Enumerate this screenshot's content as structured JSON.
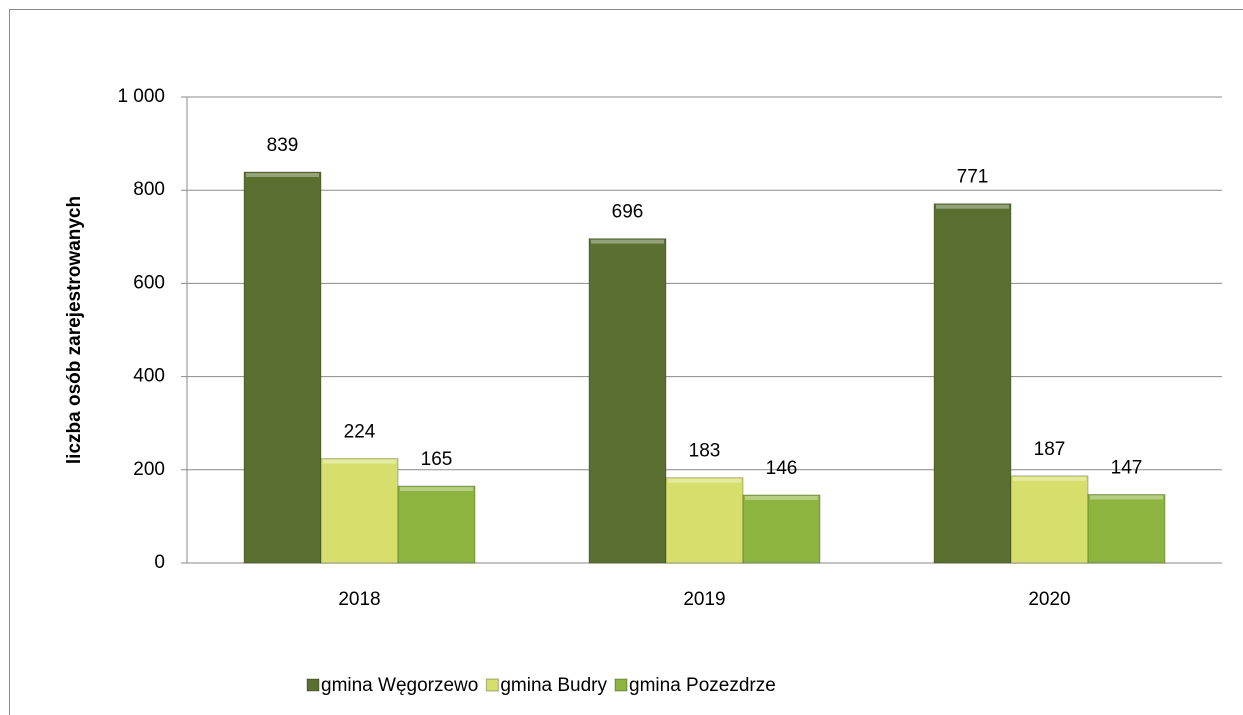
{
  "chart_data": {
    "type": "bar",
    "y_label": "liczba osób zarejestrowanych",
    "categories": [
      "2018",
      "2019",
      "2020"
    ],
    "series": [
      {
        "name": "gmina Węgorzewo",
        "color": "#5a7030",
        "values": [
          839,
          696,
          771
        ]
      },
      {
        "name": "gmina Budry",
        "color": "#d6df6c",
        "values": [
          224,
          183,
          187
        ]
      },
      {
        "name": "gmina Pozezdrze",
        "color": "#8db43f",
        "values": [
          165,
          146,
          147
        ]
      }
    ],
    "ylim": [
      0,
      1000
    ],
    "yticks": [
      0,
      200,
      400,
      600,
      800,
      {
        "value": 1000,
        "label": "1 000"
      }
    ],
    "grid": true,
    "legend": "bottom"
  }
}
